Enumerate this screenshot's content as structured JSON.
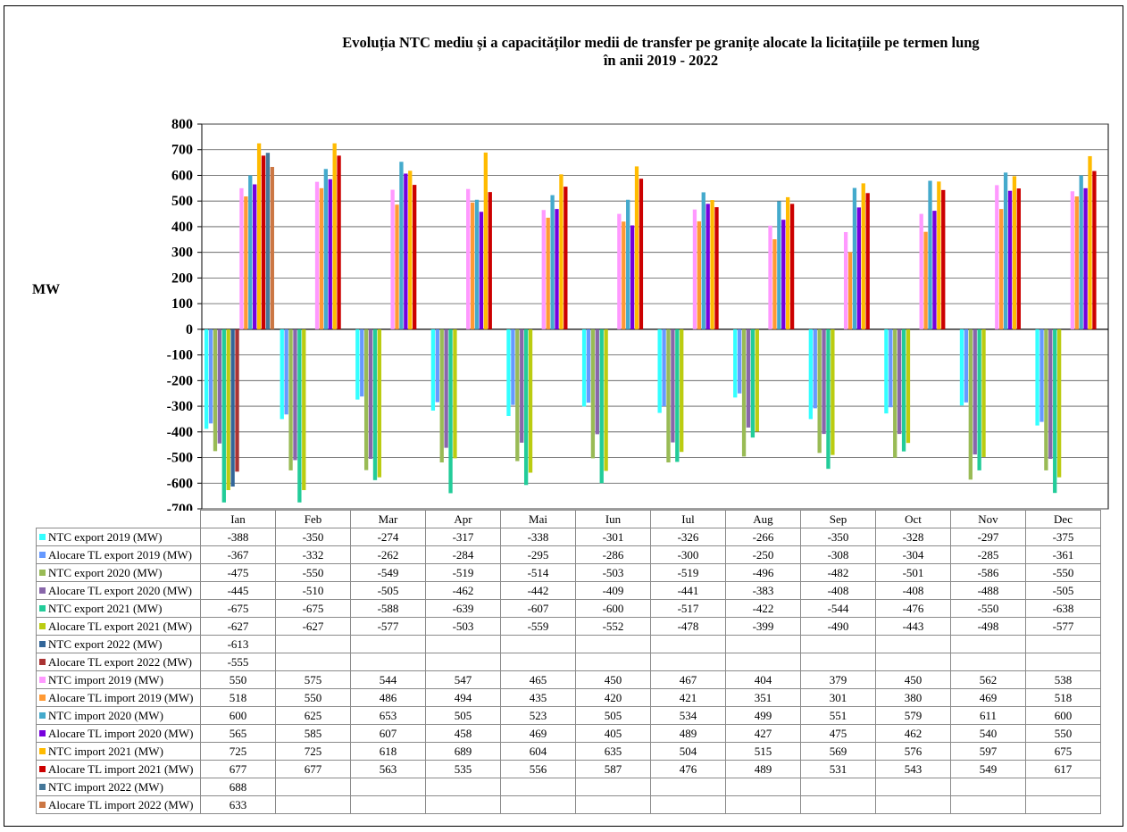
{
  "title_line1": "Evoluția NTC mediu și  a capacităților medii de transfer pe granițe alocate la licitațiile pe termen lung",
  "title_line2": "în anii 2019 - 2022",
  "chart_data": {
    "type": "bar",
    "ylabel": "MW",
    "ylim": [
      -700,
      800
    ],
    "yticks": [
      800,
      700,
      600,
      500,
      400,
      300,
      200,
      100,
      0,
      -100,
      -200,
      -300,
      -400,
      -500,
      -600,
      -700
    ],
    "grid": true,
    "categories": [
      "Ian",
      "Feb",
      "Mar",
      "Apr",
      "Mai",
      "Iun",
      "Iul",
      "Aug",
      "Sep",
      "Oct",
      "Nov",
      "Dec"
    ],
    "series": [
      {
        "name": "NTC export 2019 (MW)",
        "color": "#33ffff",
        "values": [
          -388,
          -350,
          -274,
          -317,
          -338,
          -301,
          -326,
          -266,
          -350,
          -328,
          -297,
          -375
        ]
      },
      {
        "name": "Alocare TL export 2019 (MW)",
        "color": "#6699ff",
        "values": [
          -367,
          -332,
          -262,
          -284,
          -295,
          -286,
          -300,
          -250,
          -308,
          -304,
          -285,
          -361
        ]
      },
      {
        "name": "NTC export 2020 (MW)",
        "color": "#99bb55",
        "values": [
          -475,
          -550,
          -549,
          -519,
          -514,
          -503,
          -519,
          -496,
          -482,
          -501,
          -586,
          -550
        ]
      },
      {
        "name": "Alocare TL export 2020 (MW)",
        "color": "#8866aa",
        "values": [
          -445,
          -510,
          -505,
          -462,
          -442,
          -409,
          -441,
          -383,
          -408,
          -408,
          -488,
          -505
        ]
      },
      {
        "name": "NTC export 2021 (MW)",
        "color": "#22cc99",
        "values": [
          -675,
          -675,
          -588,
          -639,
          -607,
          -600,
          -517,
          -422,
          -544,
          -476,
          -550,
          -638
        ]
      },
      {
        "name": "Alocare TL export 2021 (MW)",
        "color": "#bbcc11",
        "values": [
          -627,
          -627,
          -577,
          -503,
          -559,
          -552,
          -478,
          -399,
          -490,
          -443,
          -498,
          -577
        ]
      },
      {
        "name": "NTC export 2022 (MW)",
        "color": "#336699",
        "values": [
          -613,
          null,
          null,
          null,
          null,
          null,
          null,
          null,
          null,
          null,
          null,
          null
        ]
      },
      {
        "name": "Alocare TL export 2022 (MW)",
        "color": "#aa3333",
        "values": [
          -555,
          null,
          null,
          null,
          null,
          null,
          null,
          null,
          null,
          null,
          null,
          null
        ]
      },
      {
        "name": "NTC import 2019 (MW)",
        "color": "#ff99ff",
        "values": [
          550,
          575,
          544,
          547,
          465,
          450,
          467,
          404,
          379,
          450,
          562,
          538
        ]
      },
      {
        "name": "Alocare TL import 2019 (MW)",
        "color": "#ff9933",
        "values": [
          518,
          550,
          486,
          494,
          435,
          420,
          421,
          351,
          301,
          380,
          469,
          518
        ]
      },
      {
        "name": "NTC import 2020 (MW)",
        "color": "#44aacc",
        "values": [
          600,
          625,
          653,
          505,
          523,
          505,
          534,
          499,
          551,
          579,
          611,
          600
        ]
      },
      {
        "name": "Alocare TL import 2020 (MW)",
        "color": "#7700dd",
        "values": [
          565,
          585,
          607,
          458,
          469,
          405,
          489,
          427,
          475,
          462,
          540,
          550
        ]
      },
      {
        "name": "NTC import 2021 (MW)",
        "color": "#ffbb00",
        "values": [
          725,
          725,
          618,
          689,
          604,
          635,
          504,
          515,
          569,
          576,
          597,
          675
        ]
      },
      {
        "name": "Alocare TL import 2021 (MW)",
        "color": "#cc0000",
        "values": [
          677,
          677,
          563,
          535,
          556,
          587,
          476,
          489,
          531,
          543,
          549,
          617
        ]
      },
      {
        "name": "NTC import 2022 (MW)",
        "color": "#447799",
        "values": [
          688,
          null,
          null,
          null,
          null,
          null,
          null,
          null,
          null,
          null,
          null,
          null
        ]
      },
      {
        "name": "Alocare TL import 2022 (MW)",
        "color": "#cc7744",
        "values": [
          633,
          null,
          null,
          null,
          null,
          null,
          null,
          null,
          null,
          null,
          null,
          null
        ]
      }
    ]
  }
}
